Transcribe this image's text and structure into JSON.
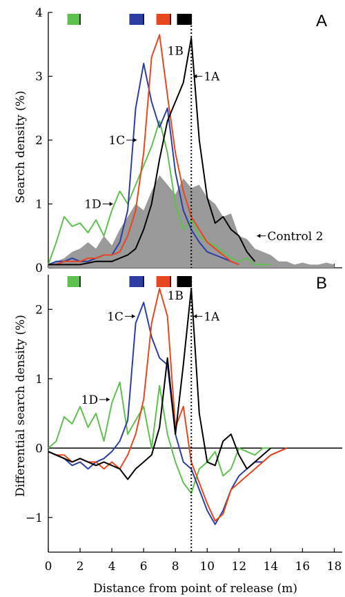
{
  "figure": {
    "x_axis_label": "Distance from point of release (m)",
    "x_ticks": [
      "0",
      "2",
      "4",
      "6",
      "8",
      "10",
      "12",
      "14",
      "16",
      "18"
    ],
    "marker_colors": {
      "1D": "#5fbf4f",
      "1C": "#2c3ea3",
      "1B": "#e8461e",
      "1A": "#000000",
      "control": "#9a9a9a"
    }
  },
  "chart_data": [
    {
      "type": "line",
      "panel_label": "A",
      "ylabel": "Search density (%)",
      "xlim": [
        0,
        18.5
      ],
      "ylim": [
        0,
        4
      ],
      "y_ticks": [
        "0",
        "1",
        "2",
        "3",
        "4"
      ],
      "grid": false,
      "reference_line_x": 9,
      "top_markers": [
        {
          "series": "1D",
          "x": [
            1.2,
            2.0
          ]
        },
        {
          "series": "1C",
          "x": [
            5.1,
            6.0
          ]
        },
        {
          "series": "1B",
          "x": [
            6.8,
            7.7
          ]
        },
        {
          "series": "1A",
          "x": [
            8.1,
            9.0
          ]
        }
      ],
      "annotations": [
        {
          "text": "1A",
          "arrow": "left",
          "series": "1A",
          "x": 9.0,
          "y": 3.0
        },
        {
          "text": "1B",
          "arrow": "none",
          "series": "1B",
          "x": 8.0,
          "y": 3.4
        },
        {
          "text": "1C",
          "arrow": "right",
          "series": "1C",
          "x": 5.7,
          "y": 2.0
        },
        {
          "text": "1D",
          "arrow": "right",
          "series": "1D",
          "x": 4.2,
          "y": 1.0
        },
        {
          "text": "Control 2",
          "arrow": "left",
          "series": "control",
          "x": 13.0,
          "y": 0.5
        }
      ],
      "series": [
        {
          "id": "control",
          "kind": "area",
          "x": [
            0,
            0.5,
            1,
            1.5,
            2,
            2.5,
            3,
            3.5,
            4,
            4.5,
            5,
            5.5,
            6,
            6.5,
            7,
            7.5,
            8,
            8.5,
            9,
            9.5,
            10,
            10.5,
            11,
            11.5,
            12,
            12.5,
            13,
            13.5,
            14,
            14.5,
            15,
            15.5,
            16,
            16.5,
            17,
            17.5,
            18
          ],
          "y": [
            0.05,
            0.1,
            0.15,
            0.25,
            0.3,
            0.4,
            0.3,
            0.5,
            0.35,
            0.6,
            0.8,
            1.0,
            0.9,
            1.2,
            1.45,
            1.3,
            1.15,
            1.4,
            1.25,
            1.3,
            1.1,
            1.0,
            0.8,
            0.85,
            0.5,
            0.45,
            0.3,
            0.25,
            0.2,
            0.1,
            0.1,
            0.05,
            0.08,
            0.05,
            0.05,
            0.08,
            0.05
          ]
        },
        {
          "id": "1D",
          "kind": "line",
          "x": [
            0,
            0.5,
            1,
            1.5,
            2,
            2.5,
            3,
            3.5,
            4,
            4.5,
            5,
            5.5,
            6,
            6.5,
            7,
            7.5,
            8,
            8.5,
            9,
            9.5,
            10,
            10.5,
            11,
            11.5,
            12,
            12.5,
            13,
            13.5,
            14
          ],
          "y": [
            0.05,
            0.4,
            0.8,
            0.65,
            0.7,
            0.55,
            0.75,
            0.5,
            0.9,
            1.2,
            1.0,
            1.3,
            1.6,
            1.9,
            2.3,
            1.8,
            1.0,
            0.6,
            0.75,
            0.5,
            0.4,
            0.35,
            0.25,
            0.15,
            0.1,
            0.15,
            0.05,
            0.05,
            0.05
          ]
        },
        {
          "id": "1C",
          "kind": "line",
          "x": [
            0,
            0.5,
            1,
            1.5,
            2,
            2.5,
            3,
            3.5,
            4,
            4.5,
            5,
            5.5,
            6,
            6.5,
            7,
            7.5,
            8,
            8.5,
            9,
            9.5,
            10,
            10.5,
            11,
            11.5,
            12
          ],
          "y": [
            0.05,
            0.1,
            0.1,
            0.15,
            0.1,
            0.1,
            0.15,
            0.2,
            0.2,
            0.4,
            0.9,
            2.5,
            3.2,
            2.6,
            2.2,
            2.5,
            1.5,
            0.9,
            0.6,
            0.4,
            0.25,
            0.2,
            0.15,
            0.1,
            0.05
          ]
        },
        {
          "id": "1B",
          "kind": "line",
          "x": [
            0,
            0.5,
            1,
            1.5,
            2,
            2.5,
            3,
            3.5,
            4,
            4.5,
            5,
            5.5,
            6,
            6.5,
            7,
            7.5,
            8,
            8.5,
            9,
            9.5,
            10,
            10.5,
            11,
            11.5,
            12
          ],
          "y": [
            0.05,
            0.05,
            0.1,
            0.1,
            0.1,
            0.15,
            0.15,
            0.2,
            0.2,
            0.25,
            0.5,
            0.9,
            1.8,
            3.3,
            3.65,
            2.7,
            1.8,
            1.2,
            0.8,
            0.6,
            0.4,
            0.3,
            0.2,
            0.1,
            0.05
          ]
        },
        {
          "id": "1A",
          "kind": "line",
          "x": [
            0,
            1,
            2,
            3,
            4,
            4.5,
            5,
            5.5,
            6,
            6.5,
            7,
            7.5,
            8,
            8.5,
            9,
            9.5,
            10,
            10.5,
            11,
            11.5,
            12,
            12.5,
            13
          ],
          "y": [
            0.05,
            0.05,
            0.05,
            0.1,
            0.1,
            0.15,
            0.2,
            0.3,
            0.6,
            1.0,
            1.7,
            2.3,
            2.6,
            2.9,
            3.6,
            2.0,
            1.1,
            0.7,
            0.8,
            0.6,
            0.5,
            0.25,
            0.1
          ]
        }
      ]
    },
    {
      "type": "line",
      "panel_label": "B",
      "ylabel": "Differential search density (%)",
      "xlim": [
        0,
        18.5
      ],
      "ylim": [
        -1.5,
        2.5
      ],
      "y_ticks": [
        "−1",
        "0",
        "1",
        "2"
      ],
      "zero_line": true,
      "grid": false,
      "reference_line_x": 9,
      "top_markers": [
        {
          "series": "1D",
          "x": [
            1.2,
            2.0
          ]
        },
        {
          "series": "1C",
          "x": [
            5.1,
            6.0
          ]
        },
        {
          "series": "1B",
          "x": [
            6.8,
            7.7
          ]
        },
        {
          "series": "1A",
          "x": [
            8.1,
            9.0
          ]
        }
      ],
      "annotations": [
        {
          "text": "1A",
          "arrow": "left",
          "series": "1A",
          "x": 9.0,
          "y": 1.9
        },
        {
          "text": "1B",
          "arrow": "none",
          "series": "1B",
          "x": 8.0,
          "y": 2.2
        },
        {
          "text": "1C",
          "arrow": "right",
          "series": "1C",
          "x": 5.6,
          "y": 1.9
        },
        {
          "text": "1D",
          "arrow": "right",
          "series": "1D",
          "x": 4.0,
          "y": 0.7
        }
      ],
      "series": [
        {
          "id": "1D",
          "kind": "line",
          "x": [
            0,
            0.5,
            1,
            1.5,
            2,
            2.5,
            3,
            3.5,
            4,
            4.5,
            5,
            5.5,
            6,
            6.5,
            7,
            7.5,
            8,
            8.5,
            9,
            9.5,
            10,
            10.5,
            11,
            11.5,
            12,
            12.5,
            13,
            13.5,
            14
          ],
          "y": [
            0.0,
            0.1,
            0.45,
            0.35,
            0.6,
            0.3,
            0.5,
            0.1,
            0.65,
            0.95,
            0.2,
            0.4,
            0.6,
            0.0,
            0.9,
            0.2,
            -0.2,
            -0.5,
            -0.65,
            -0.3,
            -0.2,
            -0.05,
            -0.4,
            -0.3,
            0.0,
            -0.05,
            -0.1,
            0.0,
            0.0
          ]
        },
        {
          "id": "1C",
          "kind": "line",
          "x": [
            0,
            0.5,
            1,
            1.5,
            2,
            2.5,
            3,
            3.5,
            4,
            4.5,
            5,
            5.5,
            6,
            6.5,
            7,
            7.5,
            8,
            8.5,
            9,
            9.5,
            10,
            10.5,
            11,
            11.5,
            12,
            12.5,
            13,
            13.5,
            14,
            14.5,
            15
          ],
          "y": [
            -0.05,
            -0.1,
            -0.15,
            -0.25,
            -0.2,
            -0.3,
            -0.2,
            -0.15,
            -0.05,
            0.1,
            0.4,
            1.8,
            2.1,
            1.6,
            1.3,
            1.2,
            0.2,
            -0.2,
            -0.3,
            -0.6,
            -0.9,
            -1.1,
            -0.9,
            -0.6,
            -0.4,
            -0.3,
            -0.2,
            -0.2,
            -0.1,
            -0.05,
            0.0
          ]
        },
        {
          "id": "1B",
          "kind": "line",
          "x": [
            0,
            0.5,
            1,
            1.5,
            2,
            2.5,
            3,
            3.5,
            4,
            4.5,
            5,
            5.5,
            6,
            6.5,
            7,
            7.5,
            8,
            8.5,
            9,
            9.5,
            10,
            10.5,
            11,
            11.5,
            12,
            12.5,
            13,
            13.5,
            14,
            14.5,
            15
          ],
          "y": [
            -0.05,
            -0.1,
            -0.1,
            -0.2,
            -0.15,
            -0.2,
            -0.2,
            -0.3,
            -0.2,
            -0.3,
            -0.1,
            0.2,
            0.7,
            1.8,
            2.3,
            1.9,
            0.3,
            0.6,
            -0.2,
            -0.5,
            -0.8,
            -1.05,
            -0.95,
            -0.6,
            -0.5,
            -0.4,
            -0.3,
            -0.2,
            -0.1,
            -0.05,
            0.0
          ]
        },
        {
          "id": "1A",
          "kind": "line",
          "x": [
            0,
            0.5,
            1,
            1.5,
            2,
            2.5,
            3,
            3.5,
            4,
            4.5,
            5,
            5.5,
            6,
            6.5,
            7,
            7.5,
            8,
            8.5,
            9,
            9.5,
            10,
            10.5,
            11,
            11.5,
            12,
            12.5,
            13,
            13.5,
            14
          ],
          "y": [
            -0.05,
            -0.1,
            -0.15,
            -0.2,
            -0.15,
            -0.2,
            -0.25,
            -0.2,
            -0.25,
            -0.3,
            -0.45,
            -0.3,
            -0.2,
            -0.1,
            0.3,
            1.3,
            0.2,
            1.2,
            2.3,
            0.5,
            -0.2,
            -0.25,
            0.1,
            0.2,
            -0.1,
            -0.3,
            -0.2,
            -0.1,
            0.0
          ]
        }
      ]
    }
  ]
}
